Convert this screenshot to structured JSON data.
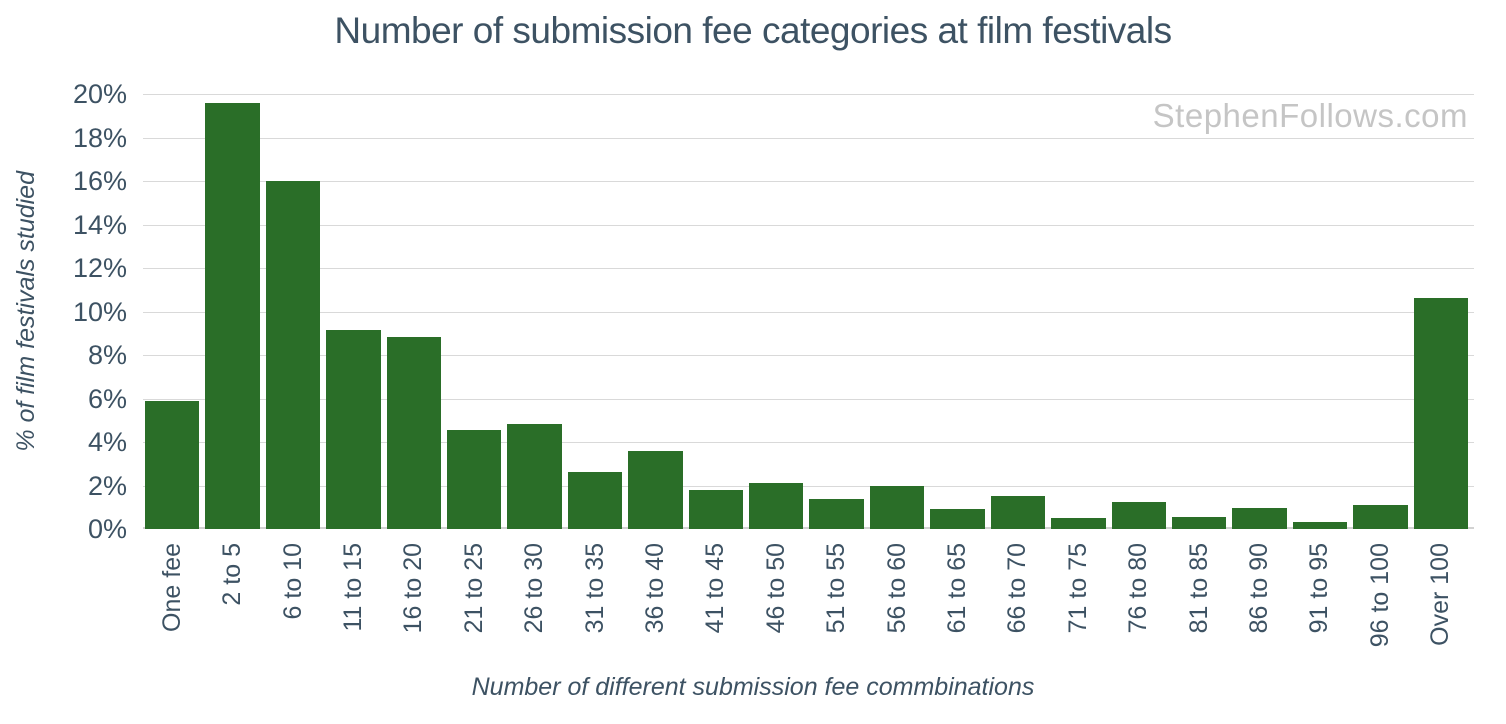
{
  "chart_data": {
    "type": "bar",
    "title": "Number of submission fee categories at film festivals",
    "xlabel": "Number of different submission fee commbinations",
    "ylabel": "% of film festivals studied",
    "watermark": "StephenFollows.com",
    "categories": [
      "One fee",
      "2 to 5",
      "6 to 10",
      "11 to 15",
      "16 to 20",
      "21 to 25",
      "26 to 30",
      "31 to 35",
      "36 to 40",
      "41 to 45",
      "46 to 50",
      "51 to 55",
      "56 to 60",
      "61 to 65",
      "66 to 70",
      "71 to 75",
      "76 to 80",
      "81 to 85",
      "86 to 90",
      "91 to 95",
      "96 to 100",
      "Over 100"
    ],
    "values": [
      5.9,
      19.6,
      16,
      9.15,
      8.85,
      4.55,
      4.85,
      2.6,
      3.6,
      1.8,
      2.1,
      1.4,
      2,
      0.9,
      1.5,
      0.5,
      1.25,
      0.55,
      0.95,
      0.3,
      1.1,
      10.6
    ],
    "ylim": [
      0,
      20
    ],
    "ytick_step": 2,
    "ytick_suffix": "%",
    "grid": true,
    "legend_position": "none",
    "bar_color": "#2a6e28",
    "text_color": "#3d5263",
    "grid_color": "#d9d9d9",
    "watermark_color": "#c5c5c5"
  }
}
